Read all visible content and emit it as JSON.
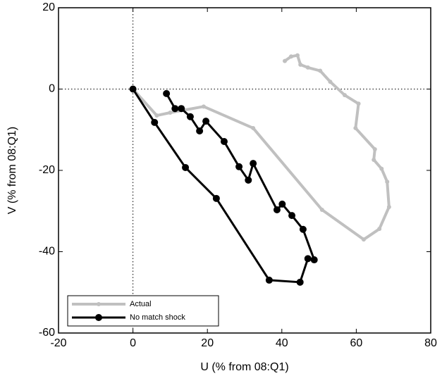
{
  "chart_data": {
    "type": "line",
    "xlabel": "U (% from 08:Q1)",
    "ylabel": "V (% from 08:Q1)",
    "xlim": [
      -20,
      80
    ],
    "xticks": [
      -20,
      0,
      20,
      40,
      60,
      80
    ],
    "ylim": [
      -60,
      20
    ],
    "yticks": [
      -60,
      -40,
      -20,
      0,
      20
    ],
    "zero_lines": true,
    "legend": "lower left",
    "series": [
      {
        "name": "Actual",
        "color": "#c0c0c0",
        "line_width": 4,
        "marker_size": 3,
        "x": [
          0,
          6.4,
          10,
          19,
          32.3,
          50.8,
          62,
          66.2,
          68.8,
          68.3,
          66.8,
          64.7,
          65,
          59.8,
          60.6,
          56.9,
          53,
          50.3,
          47,
          45,
          44.2,
          42.5,
          40.8
        ],
        "values": [
          0,
          -6.5,
          -5.8,
          -4.3,
          -9.6,
          -29.7,
          -37,
          -34.4,
          -29,
          -22.8,
          -19.6,
          -17.4,
          -14.8,
          -9.6,
          -3.6,
          -1.5,
          1.8,
          4.5,
          5.3,
          6,
          8.3,
          8,
          6.9
        ]
      },
      {
        "name": "No match shock",
        "color": "#000000",
        "line_width": 3,
        "marker_size": 5,
        "x": [
          0,
          5.8,
          14.1,
          22.4,
          36.6,
          44.9,
          47.0,
          48.7,
          45.7,
          42.7,
          40.1,
          38.7,
          32.3,
          31.0,
          28.5,
          24.5,
          19.6,
          17.9,
          15.4,
          13.0,
          11.3,
          9.0
        ],
        "values": [
          0,
          -8.2,
          -19.3,
          -26.9,
          -47.0,
          -47.5,
          -41.7,
          -42.0,
          -34.5,
          -31.1,
          -28.3,
          -29.7,
          -18.3,
          -22.4,
          -19.1,
          -12.9,
          -7.9,
          -10.3,
          -6.8,
          -4.8,
          -4.8,
          -1.1
        ]
      }
    ]
  }
}
